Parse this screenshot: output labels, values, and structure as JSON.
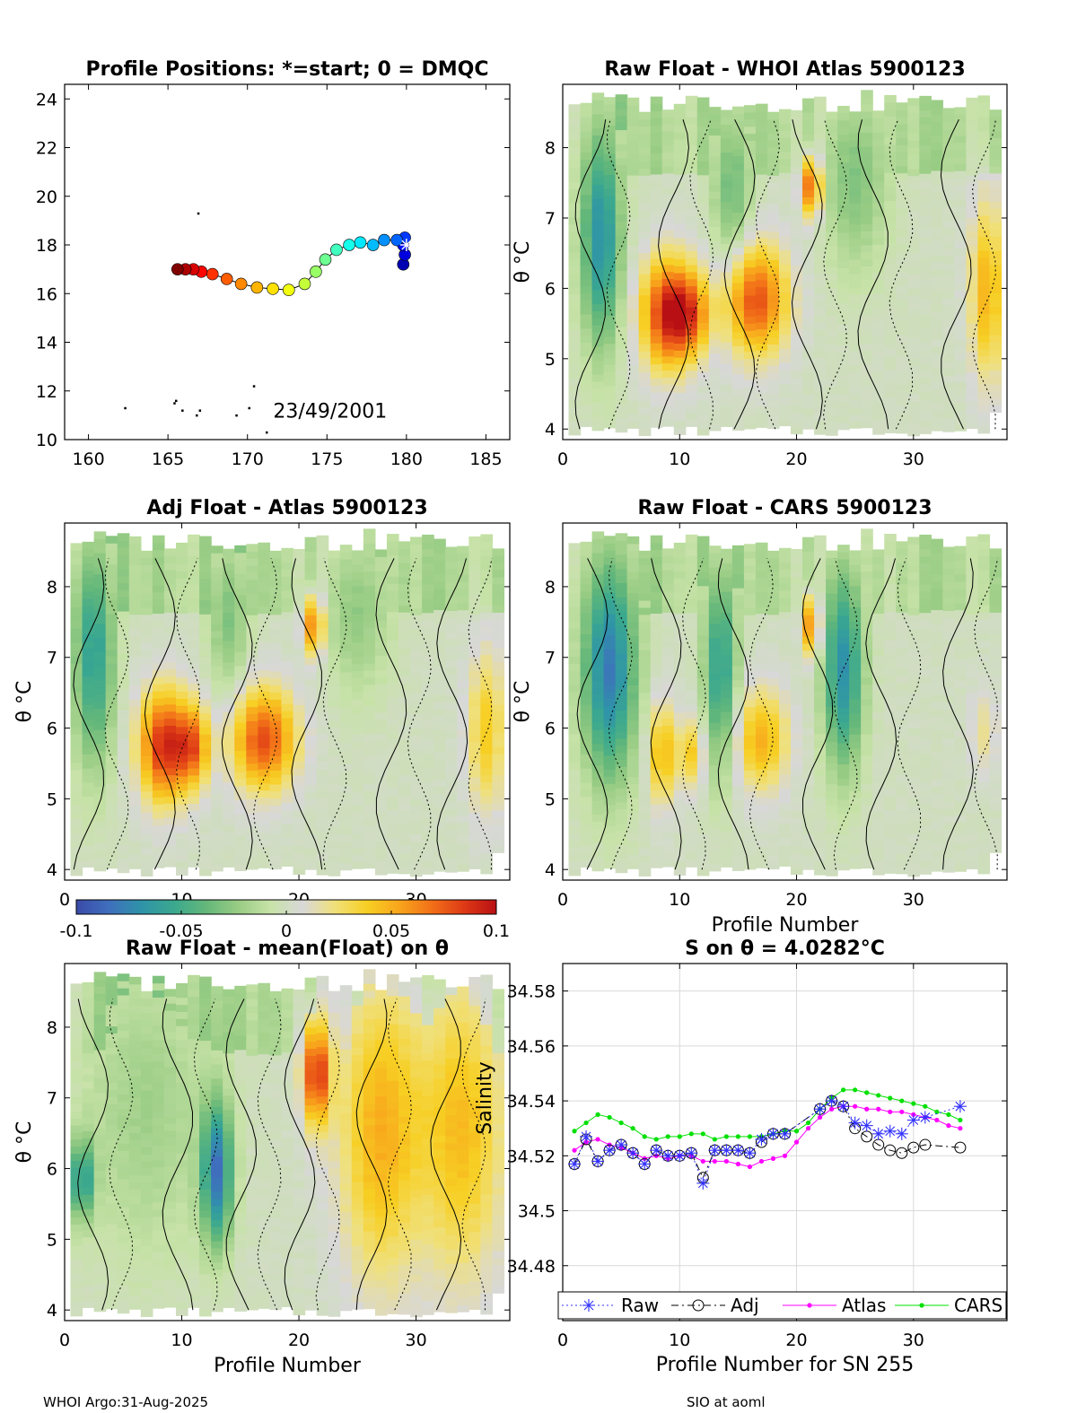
{
  "footer": {
    "left": "WHOI Argo:31-Aug-2025",
    "right": "SIO at aoml"
  },
  "colors": {
    "grid": "#d9d9d9",
    "raw": "#3030ff",
    "adj": "#000000",
    "atlas": "#ff00ff",
    "cars": "#00e000",
    "colormap": [
      "#3a4aa8",
      "#3f6fbd",
      "#2f93a9",
      "#3aa88f",
      "#63b77a",
      "#98cc84",
      "#c7e2a7",
      "#d8d8d8",
      "#f0e07a",
      "#f7cf23",
      "#f8a51c",
      "#f27018",
      "#de3a16",
      "#b80f14"
    ]
  },
  "colorbar": {
    "ticks": [
      "-0.1",
      "-0.05",
      "0",
      "0.05",
      "0.1"
    ],
    "range": [
      -0.1,
      0.1
    ]
  },
  "chart_data": [
    {
      "id": "positions",
      "type": "scatter",
      "title": "Profile Positions: *=start; 0 = DMQC",
      "xlim": [
        158.5,
        186.5
      ],
      "ylim": [
        10,
        24.6
      ],
      "xticks": [
        160,
        165,
        170,
        175,
        180,
        185
      ],
      "yticks": [
        10,
        12,
        14,
        16,
        18,
        20,
        22,
        24
      ],
      "annotation": "23/49/2001",
      "track": [
        {
          "x": 179.8,
          "y": 17.2
        },
        {
          "x": 179.9,
          "y": 17.6
        },
        {
          "x": 179.8,
          "y": 18.0
        },
        {
          "x": 179.9,
          "y": 18.3
        },
        {
          "x": 179.4,
          "y": 18.2
        },
        {
          "x": 178.6,
          "y": 18.2
        },
        {
          "x": 177.9,
          "y": 18.0
        },
        {
          "x": 177.1,
          "y": 18.1
        },
        {
          "x": 176.4,
          "y": 18.0
        },
        {
          "x": 175.6,
          "y": 17.8
        },
        {
          "x": 174.9,
          "y": 17.4
        },
        {
          "x": 174.3,
          "y": 16.9
        },
        {
          "x": 173.6,
          "y": 16.4
        },
        {
          "x": 172.6,
          "y": 16.15
        },
        {
          "x": 171.6,
          "y": 16.2
        },
        {
          "x": 170.6,
          "y": 16.25
        },
        {
          "x": 169.6,
          "y": 16.4
        },
        {
          "x": 168.7,
          "y": 16.6
        },
        {
          "x": 167.8,
          "y": 16.8
        },
        {
          "x": 167.1,
          "y": 16.9
        },
        {
          "x": 166.6,
          "y": 17.0
        },
        {
          "x": 166.1,
          "y": 17.0
        },
        {
          "x": 165.6,
          "y": 17.0
        }
      ],
      "start": {
        "x": 180.0,
        "y": 18.0
      },
      "coast_points": [
        {
          "x": 162.3,
          "y": 11.3
        },
        {
          "x": 165.4,
          "y": 11.5
        },
        {
          "x": 165.9,
          "y": 11.2
        },
        {
          "x": 166.8,
          "y": 11.0
        },
        {
          "x": 167.0,
          "y": 11.2
        },
        {
          "x": 169.3,
          "y": 11.0
        },
        {
          "x": 170.1,
          "y": 11.3
        },
        {
          "x": 170.4,
          "y": 12.2
        },
        {
          "x": 171.2,
          "y": 10.3
        },
        {
          "x": 166.9,
          "y": 19.3
        },
        {
          "x": 165.5,
          "y": 11.6
        }
      ]
    },
    {
      "id": "whoi",
      "type": "heatmap",
      "title": "Raw Float - WHOI Atlas  5900123",
      "xlim": [
        0,
        38
      ],
      "ylim": [
        3.85,
        8.9
      ],
      "xticks": [
        0,
        10,
        20,
        30
      ],
      "yticks": [
        4,
        5,
        6,
        7,
        8
      ],
      "ylabel": "θ °C",
      "xlabel": "",
      "blobs": [
        {
          "x": 9,
          "y": 5.6,
          "sx": 1.6,
          "sy": 0.55,
          "a": 0.09
        },
        {
          "x": 11,
          "y": 5.6,
          "sx": 1.2,
          "sy": 0.4,
          "a": 0.05
        },
        {
          "x": 16.5,
          "y": 5.8,
          "sx": 1.9,
          "sy": 0.55,
          "a": 0.08
        },
        {
          "x": 21.3,
          "y": 7.4,
          "sx": 0.6,
          "sy": 0.3,
          "a": 0.08
        },
        {
          "x": 36.3,
          "y": 5.9,
          "sx": 1.0,
          "sy": 0.9,
          "a": 0.05
        },
        {
          "x": 3.3,
          "y": 6.7,
          "sx": 1.2,
          "sy": 1.1,
          "a": -0.07
        },
        {
          "x": 14.5,
          "y": 7.3,
          "sx": 1.2,
          "sy": 0.9,
          "a": -0.035
        },
        {
          "x": 25,
          "y": 7.5,
          "sx": 2.0,
          "sy": 0.9,
          "a": -0.03
        }
      ],
      "profiles": 37
    },
    {
      "id": "adj",
      "type": "heatmap",
      "title": "Adj Float - Atlas  5900123",
      "xlim": [
        0,
        38
      ],
      "ylim": [
        3.85,
        8.9
      ],
      "xticks": [
        0,
        10,
        20,
        30
      ],
      "yticks": [
        4,
        5,
        6,
        7,
        8
      ],
      "ylabel": "θ °C",
      "xlabel": "",
      "blobs": [
        {
          "x": 8.5,
          "y": 5.7,
          "sx": 1.5,
          "sy": 0.55,
          "a": 0.09
        },
        {
          "x": 11,
          "y": 5.7,
          "sx": 1.0,
          "sy": 0.4,
          "a": 0.06
        },
        {
          "x": 17,
          "y": 5.8,
          "sx": 1.9,
          "sy": 0.5,
          "a": 0.08
        },
        {
          "x": 21.3,
          "y": 7.4,
          "sx": 0.6,
          "sy": 0.3,
          "a": 0.07
        },
        {
          "x": 36,
          "y": 5.9,
          "sx": 1.1,
          "sy": 0.8,
          "a": 0.04
        },
        {
          "x": 2.5,
          "y": 7.0,
          "sx": 1.2,
          "sy": 1.1,
          "a": -0.06
        },
        {
          "x": 14,
          "y": 7.5,
          "sx": 1.2,
          "sy": 0.8,
          "a": -0.03
        },
        {
          "x": 25,
          "y": 7.6,
          "sx": 2.0,
          "sy": 0.8,
          "a": -0.025
        }
      ],
      "profiles": 37
    },
    {
      "id": "cars",
      "type": "heatmap",
      "title": "Raw Float - CARS  5900123",
      "xlim": [
        0,
        38
      ],
      "ylim": [
        3.85,
        8.9
      ],
      "xticks": [
        0,
        10,
        20,
        30
      ],
      "yticks": [
        4,
        5,
        6,
        7,
        8
      ],
      "ylabel": "θ °C",
      "xlabel": "Profile Number",
      "blobs": [
        {
          "x": 8.5,
          "y": 5.6,
          "sx": 0.8,
          "sy": 0.5,
          "a": 0.05
        },
        {
          "x": 11,
          "y": 5.6,
          "sx": 0.8,
          "sy": 0.35,
          "a": 0.04
        },
        {
          "x": 17,
          "y": 5.8,
          "sx": 1.6,
          "sy": 0.5,
          "a": 0.05
        },
        {
          "x": 21.3,
          "y": 7.4,
          "sx": 0.5,
          "sy": 0.3,
          "a": 0.07
        },
        {
          "x": 4,
          "y": 6.8,
          "sx": 1.6,
          "sy": 1.1,
          "a": -0.08
        },
        {
          "x": 13.5,
          "y": 6.8,
          "sx": 1.0,
          "sy": 1.0,
          "a": -0.06
        },
        {
          "x": 24,
          "y": 6.8,
          "sx": 1.2,
          "sy": 1.0,
          "a": -0.07
        },
        {
          "x": 36,
          "y": 5.9,
          "sx": 0.8,
          "sy": 0.4,
          "a": 0.02
        }
      ],
      "profiles": 37
    },
    {
      "id": "mean",
      "type": "heatmap",
      "title": "Raw Float - mean(Float) on θ",
      "xlim": [
        0,
        38
      ],
      "ylim": [
        3.85,
        8.9
      ],
      "xticks": [
        0,
        10,
        20,
        30
      ],
      "yticks": [
        4,
        5,
        6,
        7,
        8
      ],
      "ylabel": "θ °C",
      "xlabel": "Profile Number",
      "blobs": [
        {
          "x": 21.5,
          "y": 7.3,
          "sx": 0.8,
          "sy": 0.5,
          "a": 0.09
        },
        {
          "x": 27,
          "y": 6.5,
          "sx": 2.5,
          "sy": 1.5,
          "a": 0.05
        },
        {
          "x": 34,
          "y": 6.5,
          "sx": 2.5,
          "sy": 1.5,
          "a": 0.045
        },
        {
          "x": 13,
          "y": 5.9,
          "sx": 0.9,
          "sy": 0.7,
          "a": -0.08
        },
        {
          "x": 1.5,
          "y": 5.8,
          "sx": 0.7,
          "sy": 0.4,
          "a": -0.06
        },
        {
          "x": 7,
          "y": 6.8,
          "sx": 4,
          "sy": 1.5,
          "a": -0.02
        }
      ],
      "profiles": 37
    },
    {
      "id": "salinity",
      "type": "line",
      "title": "S on θ = 4.0282°C",
      "xlim": [
        0,
        38
      ],
      "ylim": [
        34.46,
        34.59
      ],
      "xticks": [
        0,
        10,
        20,
        30
      ],
      "yticks": [
        "34.48",
        "34.5",
        "34.52",
        "34.54",
        "34.56",
        "34.58"
      ],
      "ylabel": "Salinity",
      "xlabel": "Profile Number for SN 255",
      "legend": [
        "Raw",
        "Adj",
        "Atlas",
        "CARS"
      ],
      "series": [
        {
          "name": "Raw",
          "x": [
            1,
            2,
            3,
            4,
            5,
            6,
            7,
            8,
            9,
            10,
            11,
            12,
            13,
            14,
            15,
            16,
            17,
            18,
            19,
            22,
            23,
            24,
            25,
            26,
            27,
            28,
            29,
            30,
            31,
            34
          ],
          "y": [
            34.517,
            34.527,
            34.518,
            34.522,
            34.524,
            34.521,
            34.517,
            34.522,
            34.52,
            34.52,
            34.521,
            34.51,
            34.522,
            34.522,
            34.522,
            34.521,
            34.526,
            34.528,
            34.528,
            34.537,
            34.54,
            34.538,
            34.532,
            34.531,
            34.528,
            34.529,
            34.528,
            34.533,
            34.534,
            34.538
          ]
        },
        {
          "name": "Adj",
          "x": [
            1,
            2,
            3,
            4,
            5,
            6,
            7,
            8,
            9,
            10,
            11,
            12,
            13,
            14,
            15,
            16,
            17,
            18,
            19,
            22,
            23,
            24,
            25,
            26,
            27,
            28,
            29,
            30,
            31,
            34
          ],
          "y": [
            34.517,
            34.526,
            34.518,
            34.522,
            34.524,
            34.521,
            34.517,
            34.522,
            34.52,
            34.52,
            34.521,
            34.512,
            34.522,
            34.522,
            34.522,
            34.521,
            34.525,
            34.528,
            34.528,
            34.537,
            34.54,
            34.538,
            34.53,
            34.527,
            34.524,
            34.522,
            34.521,
            34.523,
            34.524,
            34.523
          ]
        },
        {
          "name": "Atlas",
          "x": [
            1,
            2,
            3,
            4,
            5,
            6,
            7,
            8,
            9,
            10,
            11,
            12,
            13,
            14,
            15,
            16,
            17,
            18,
            19,
            20,
            21,
            22,
            23,
            24,
            25,
            26,
            27,
            28,
            29,
            30,
            31,
            32,
            33,
            34
          ],
          "y": [
            34.522,
            34.525,
            34.526,
            34.524,
            34.523,
            34.521,
            34.519,
            34.52,
            34.519,
            34.52,
            34.52,
            34.518,
            34.518,
            34.518,
            34.517,
            34.516,
            34.518,
            34.519,
            34.52,
            34.525,
            34.53,
            34.534,
            34.537,
            34.538,
            34.538,
            34.537,
            34.537,
            34.536,
            34.536,
            34.535,
            34.534,
            34.533,
            34.531,
            34.53
          ]
        },
        {
          "name": "CARS",
          "x": [
            1,
            2,
            3,
            4,
            5,
            6,
            7,
            8,
            9,
            10,
            11,
            12,
            13,
            14,
            15,
            16,
            17,
            18,
            19,
            20,
            21,
            22,
            23,
            24,
            25,
            26,
            27,
            28,
            29,
            30,
            31,
            32,
            33,
            34
          ],
          "y": [
            34.529,
            34.532,
            34.535,
            34.534,
            34.532,
            34.53,
            34.527,
            34.526,
            34.527,
            34.527,
            34.528,
            34.528,
            34.526,
            34.527,
            34.527,
            34.527,
            34.527,
            34.528,
            34.529,
            34.529,
            34.532,
            34.537,
            34.541,
            34.544,
            34.544,
            34.543,
            34.542,
            34.541,
            34.54,
            34.539,
            34.538,
            34.536,
            34.535,
            34.533
          ]
        }
      ]
    }
  ]
}
